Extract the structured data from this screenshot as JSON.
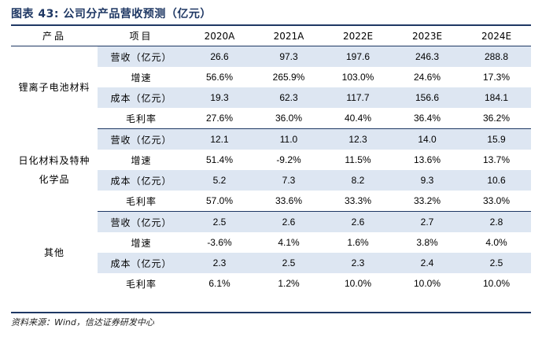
{
  "title": "图表 43: 公司分产品营收预测（亿元）",
  "header": {
    "product": "产品",
    "item": "项目",
    "years": [
      "2020A",
      "2021A",
      "2022E",
      "2023E",
      "2024E"
    ]
  },
  "groups": [
    {
      "name": "锂离子电池材料",
      "rows": [
        {
          "item": "营收（亿元）",
          "values": [
            "26.6",
            "97.3",
            "197.6",
            "246.3",
            "288.8"
          ]
        },
        {
          "item": "增速",
          "values": [
            "56.6%",
            "265.9%",
            "103.0%",
            "24.6%",
            "17.3%"
          ]
        },
        {
          "item": "成本（亿元）",
          "values": [
            "19.3",
            "62.3",
            "117.7",
            "156.6",
            "184.1"
          ]
        },
        {
          "item": "毛利率",
          "values": [
            "27.6%",
            "36.0%",
            "40.4%",
            "36.4%",
            "36.2%"
          ]
        }
      ]
    },
    {
      "name": "日化材料及特种化学品",
      "name_lines": [
        "日化材料及特种",
        "化学品"
      ],
      "rows": [
        {
          "item": "营收（亿元）",
          "values": [
            "12.1",
            "11.0",
            "12.3",
            "14.0",
            "15.9"
          ]
        },
        {
          "item": "增速",
          "values": [
            "51.4%",
            "-9.2%",
            "11.5%",
            "13.6%",
            "13.7%"
          ]
        },
        {
          "item": "成本（亿元）",
          "values": [
            "5.2",
            "7.3",
            "8.2",
            "9.3",
            "10.6"
          ]
        },
        {
          "item": "毛利率",
          "values": [
            "57.0%",
            "33.6%",
            "33.3%",
            "33.2%",
            "33.0%"
          ]
        }
      ]
    },
    {
      "name": "其他",
      "rows": [
        {
          "item": "营收（亿元）",
          "values": [
            "2.5",
            "2.6",
            "2.6",
            "2.7",
            "2.8"
          ]
        },
        {
          "item": "增速",
          "values": [
            "-3.6%",
            "4.1%",
            "1.6%",
            "3.8%",
            "4.0%"
          ]
        },
        {
          "item": "成本（亿元）",
          "values": [
            "2.3",
            "2.5",
            "2.3",
            "2.4",
            "2.5"
          ]
        },
        {
          "item": "毛利率",
          "values": [
            "6.1%",
            "1.2%",
            "10.0%",
            "10.0%",
            "10.0%"
          ]
        }
      ]
    }
  ],
  "source": "资料来源：Wind，信达证券研发中心",
  "colors": {
    "accent": "#1f3864",
    "shade": "#dde6f2"
  }
}
